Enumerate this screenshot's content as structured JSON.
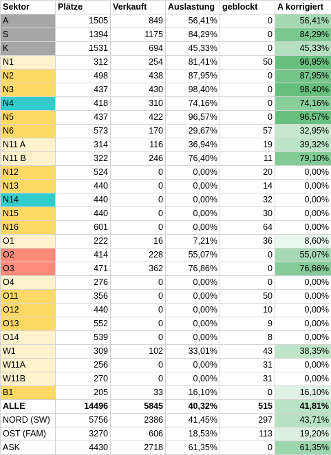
{
  "headers": [
    "Sektor",
    "Plätze",
    "Verkauft",
    "Auslastung",
    "geblockt",
    "A korrigiert"
  ],
  "colors": {
    "gray": "#a6a6a6",
    "light_yellow": "#fff2cc",
    "yellow": "#ffd966",
    "teal": "#33cccc",
    "salmon": "#ff8b7b",
    "white": "#ffffff"
  },
  "rows": [
    {
      "sektor": "A",
      "plaetze": "1505",
      "verkauft": "849",
      "auslastung": "56,41%",
      "geblockt": "0",
      "korrigiert": "56,41%",
      "sektor_color": "gray",
      "bold": false
    },
    {
      "sektor": "S",
      "plaetze": "1394",
      "verkauft": "1175",
      "auslastung": "84,29%",
      "geblockt": "0",
      "korrigiert": "84,29%",
      "sektor_color": "gray",
      "bold": false
    },
    {
      "sektor": "K",
      "plaetze": "1531",
      "verkauft": "694",
      "auslastung": "45,33%",
      "geblockt": "0",
      "korrigiert": "45,33%",
      "sektor_color": "gray",
      "bold": false
    },
    {
      "sektor": "N1",
      "plaetze": "312",
      "verkauft": "254",
      "auslastung": "81,41%",
      "geblockt": "50",
      "korrigiert": "96,95%",
      "sektor_color": "light_yellow",
      "bold": false
    },
    {
      "sektor": "N2",
      "plaetze": "498",
      "verkauft": "438",
      "auslastung": "87,95%",
      "geblockt": "0",
      "korrigiert": "87,95%",
      "sektor_color": "yellow",
      "bold": false
    },
    {
      "sektor": "N3",
      "plaetze": "437",
      "verkauft": "430",
      "auslastung": "98,40%",
      "geblockt": "0",
      "korrigiert": "98,40%",
      "sektor_color": "yellow",
      "bold": false
    },
    {
      "sektor": "N4",
      "plaetze": "418",
      "verkauft": "310",
      "auslastung": "74,16%",
      "geblockt": "0",
      "korrigiert": "74,16%",
      "sektor_color": "teal",
      "bold": false
    },
    {
      "sektor": "N5",
      "plaetze": "437",
      "verkauft": "422",
      "auslastung": "96,57%",
      "geblockt": "0",
      "korrigiert": "96,57%",
      "sektor_color": "yellow",
      "bold": false
    },
    {
      "sektor": "N6",
      "plaetze": "573",
      "verkauft": "170",
      "auslastung": "29,67%",
      "geblockt": "57",
      "korrigiert": "32,95%",
      "sektor_color": "yellow",
      "bold": false
    },
    {
      "sektor": "N11 A",
      "plaetze": "314",
      "verkauft": "116",
      "auslastung": "36,94%",
      "geblockt": "19",
      "korrigiert": "39,32%",
      "sektor_color": "light_yellow",
      "bold": false
    },
    {
      "sektor": "N11 B",
      "plaetze": "322",
      "verkauft": "246",
      "auslastung": "76,40%",
      "geblockt": "11",
      "korrigiert": "79,10%",
      "sektor_color": "light_yellow",
      "bold": false
    },
    {
      "sektor": "N12",
      "plaetze": "524",
      "verkauft": "0",
      "auslastung": "0,00%",
      "geblockt": "20",
      "korrigiert": "0,00%",
      "sektor_color": "yellow",
      "bold": false
    },
    {
      "sektor": "N13",
      "plaetze": "440",
      "verkauft": "0",
      "auslastung": "0,00%",
      "geblockt": "14",
      "korrigiert": "0,00%",
      "sektor_color": "yellow",
      "bold": false
    },
    {
      "sektor": "N14",
      "plaetze": "440",
      "verkauft": "0",
      "auslastung": "0,00%",
      "geblockt": "32",
      "korrigiert": "0,00%",
      "sektor_color": "teal",
      "bold": false
    },
    {
      "sektor": "N15",
      "plaetze": "440",
      "verkauft": "0",
      "auslastung": "0,00%",
      "geblockt": "30",
      "korrigiert": "0,00%",
      "sektor_color": "yellow",
      "bold": false
    },
    {
      "sektor": "N16",
      "plaetze": "601",
      "verkauft": "0",
      "auslastung": "0,00%",
      "geblockt": "64",
      "korrigiert": "0,00%",
      "sektor_color": "yellow",
      "bold": false
    },
    {
      "sektor": "O1",
      "plaetze": "222",
      "verkauft": "16",
      "auslastung": "7,21%",
      "geblockt": "36",
      "korrigiert": "8,60%",
      "sektor_color": "light_yellow",
      "bold": false
    },
    {
      "sektor": "O2",
      "plaetze": "414",
      "verkauft": "228",
      "auslastung": "55,07%",
      "geblockt": "0",
      "korrigiert": "55,07%",
      "sektor_color": "salmon",
      "bold": false
    },
    {
      "sektor": "O3",
      "plaetze": "471",
      "verkauft": "362",
      "auslastung": "76,86%",
      "geblockt": "0",
      "korrigiert": "76,86%",
      "sektor_color": "salmon",
      "bold": false
    },
    {
      "sektor": "O4",
      "plaetze": "276",
      "verkauft": "0",
      "auslastung": "0,00%",
      "geblockt": "0",
      "korrigiert": "0,00%",
      "sektor_color": "light_yellow",
      "bold": false
    },
    {
      "sektor": "O11",
      "plaetze": "356",
      "verkauft": "0",
      "auslastung": "0,00%",
      "geblockt": "50",
      "korrigiert": "0,00%",
      "sektor_color": "yellow",
      "bold": false
    },
    {
      "sektor": "O12",
      "plaetze": "440",
      "verkauft": "0",
      "auslastung": "0,00%",
      "geblockt": "10",
      "korrigiert": "0,00%",
      "sektor_color": "yellow",
      "bold": false
    },
    {
      "sektor": "O13",
      "plaetze": "552",
      "verkauft": "0",
      "auslastung": "0,00%",
      "geblockt": "9",
      "korrigiert": "0,00%",
      "sektor_color": "yellow",
      "bold": false
    },
    {
      "sektor": "O14",
      "plaetze": "539",
      "verkauft": "0",
      "auslastung": "0,00%",
      "geblockt": "8",
      "korrigiert": "0,00%",
      "sektor_color": "light_yellow",
      "bold": false
    },
    {
      "sektor": "W1",
      "plaetze": "309",
      "verkauft": "102",
      "auslastung": "33,01%",
      "geblockt": "43",
      "korrigiert": "38,35%",
      "sektor_color": "light_yellow",
      "bold": false
    },
    {
      "sektor": "W11A",
      "plaetze": "256",
      "verkauft": "0",
      "auslastung": "0,00%",
      "geblockt": "31",
      "korrigiert": "0,00%",
      "sektor_color": "light_yellow",
      "bold": false
    },
    {
      "sektor": "W11B",
      "plaetze": "270",
      "verkauft": "0",
      "auslastung": "0,00%",
      "geblockt": "31",
      "korrigiert": "0,00%",
      "sektor_color": "light_yellow",
      "bold": false
    },
    {
      "sektor": "B1",
      "plaetze": "205",
      "verkauft": "33",
      "auslastung": "16,10%",
      "geblockt": "0",
      "korrigiert": "16,10%",
      "sektor_color": "yellow",
      "bold": false
    },
    {
      "sektor": "ALLE",
      "plaetze": "14496",
      "verkauft": "5845",
      "auslastung": "40,32%",
      "geblockt": "515",
      "korrigiert": "41,81%",
      "sektor_color": "white",
      "bold": true
    },
    {
      "sektor": "NORD (SW)",
      "plaetze": "5756",
      "verkauft": "2386",
      "auslastung": "41,45%",
      "geblockt": "297",
      "korrigiert": "43,71%",
      "sektor_color": "white",
      "bold": false
    },
    {
      "sektor": "OST (FAM)",
      "plaetze": "3270",
      "verkauft": "606",
      "auslastung": "18,53%",
      "geblockt": "113",
      "korrigiert": "19,20%",
      "sektor_color": "white",
      "bold": false
    },
    {
      "sektor": "ASK",
      "plaetze": "4430",
      "verkauft": "2718",
      "auslastung": "61,35%",
      "geblockt": "0",
      "korrigiert": "61,35%",
      "sektor_color": "white",
      "bold": false
    }
  ]
}
